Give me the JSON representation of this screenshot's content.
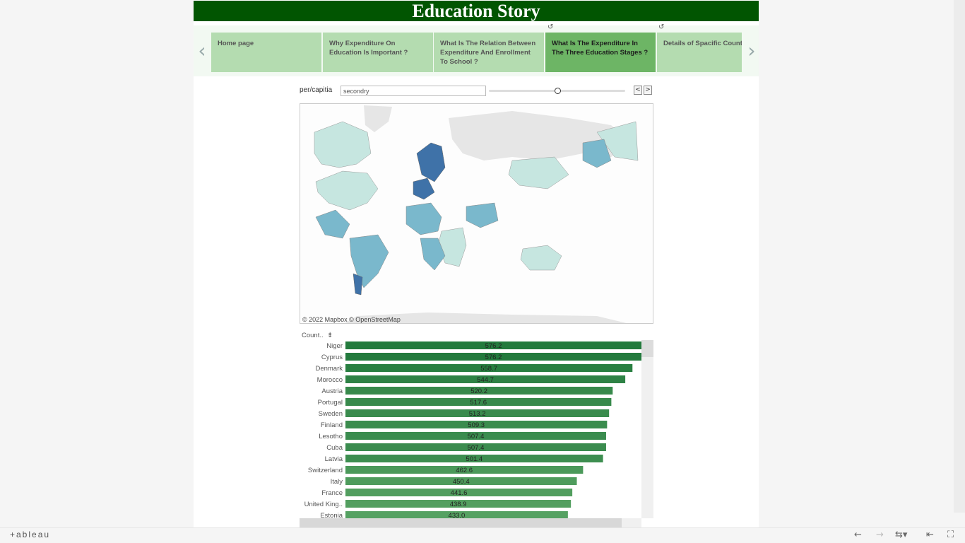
{
  "story": {
    "title": "Education Story"
  },
  "nav": {
    "prev_icon": "chevron-left-icon",
    "next_icon": "chevron-right-icon",
    "tabs": [
      {
        "label": "Home page",
        "active": false
      },
      {
        "label": "Why Expenditure On Education Is Important ?",
        "active": false
      },
      {
        "label": "What Is The Relation Between Expenditure And Enrollment To School ?",
        "active": false
      },
      {
        "label": "What Is The Expenditure In The Three Education Stages ?",
        "active": true
      },
      {
        "label": "Details of Spacific Countri",
        "active": false
      }
    ]
  },
  "filter": {
    "label": "per/capitia",
    "value": "secondry",
    "prev_label": "<",
    "next_label": ">"
  },
  "map": {
    "attribution": "© 2022 Mapbox  © OpenStreetMap",
    "colors": {
      "ocean": "#ffffff",
      "land_nodata": "#e6e6e6",
      "low": "#c6e6e0",
      "mid": "#7ab8cc",
      "high": "#3f72a8"
    }
  },
  "bars": {
    "header": "Count..",
    "sort_icon": "sort-descending-icon",
    "bar_colors": {
      "high": "#237a3d",
      "low": "#5aa465"
    }
  },
  "chart_data": {
    "type": "bar",
    "orientation": "horizontal",
    "categories": [
      "Niger",
      "Cyprus",
      "Denmark",
      "Morocco",
      "Austria",
      "Portugal",
      "Sweden",
      "Finland",
      "Lesotho",
      "Cuba",
      "Latvia",
      "Switzerland",
      "Italy",
      "France",
      "United King..",
      "Estonia"
    ],
    "values": [
      576.2,
      576.2,
      558.7,
      544.7,
      520.2,
      517.6,
      513.2,
      509.3,
      507.4,
      507.4,
      501.4,
      462.6,
      450.4,
      441.6,
      438.9,
      433.0
    ],
    "labels": [
      "576.2",
      "576.2",
      "558.7",
      "544.7",
      "520.2",
      "517.6",
      "513.2",
      "509.3",
      "507.4",
      "507.4",
      "501.4",
      "462.6",
      "450.4",
      "441.6",
      "438.9",
      "433.0"
    ],
    "title": "",
    "xlabel": "",
    "ylabel": "Count..",
    "xlim": [
      0,
      576.2
    ]
  },
  "toolbar": {
    "logo": "+ableau",
    "undo_icon": "undo-icon",
    "redo_icon": "redo-icon",
    "revert_icon": "revert-icon",
    "first_icon": "reset-icon",
    "fullscreen_icon": "fullscreen-icon"
  }
}
